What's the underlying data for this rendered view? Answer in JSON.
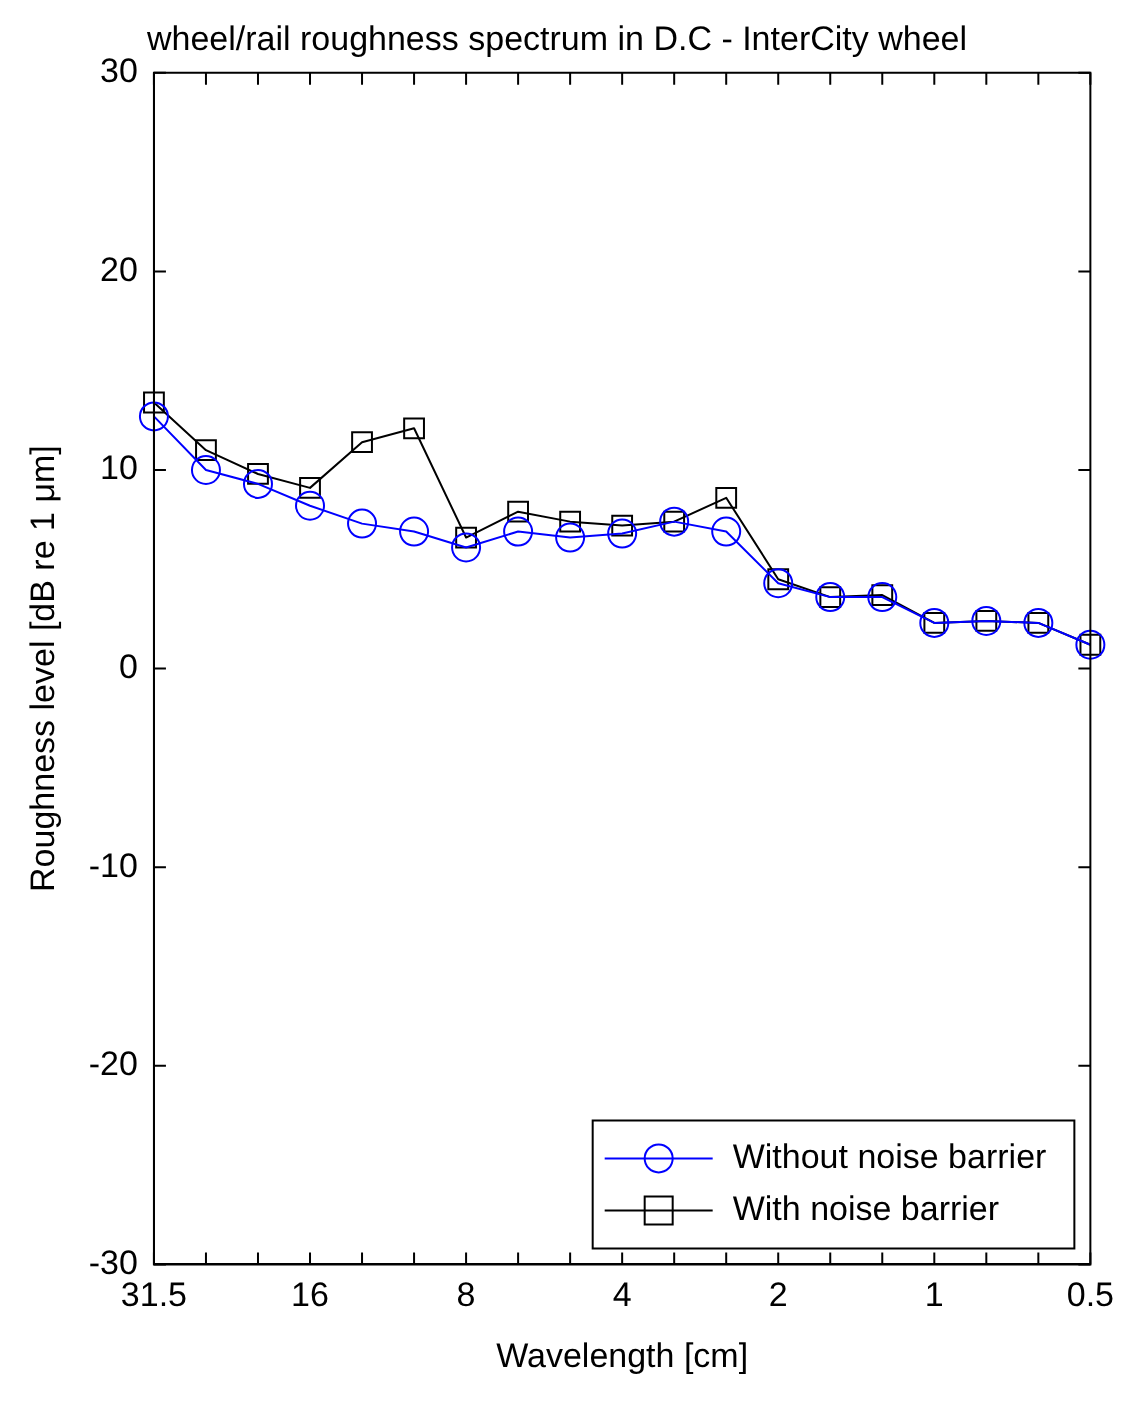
{
  "chart_data": {
    "type": "line",
    "title": "wheel/rail roughness spectrum in D.C - InterCity wheel",
    "xlabel": "Wavelength [cm]",
    "ylabel": "Roughness level [dB re 1 μm]",
    "categories": [
      "31.5",
      null,
      null,
      "16",
      null,
      null,
      "8",
      null,
      null,
      "4",
      null,
      null,
      "2",
      null,
      null,
      "1",
      null,
      null,
      "0.5"
    ],
    "series": [
      {
        "name": "Without noise barrier",
        "color": "#0000ff",
        "marker": "circle",
        "values": [
          12.7,
          10.0,
          9.3,
          8.2,
          7.3,
          6.9,
          6.1,
          6.9,
          6.6,
          6.8,
          7.4,
          6.9,
          4.3,
          3.6,
          3.6,
          2.3,
          2.4,
          2.3,
          1.2
        ]
      },
      {
        "name": "With noise barrier",
        "color": "#000000",
        "marker": "square",
        "values": [
          13.4,
          11.0,
          9.8,
          9.1,
          11.4,
          12.1,
          6.6,
          7.9,
          7.4,
          7.2,
          7.4,
          8.6,
          4.5,
          3.6,
          3.7,
          2.3,
          2.4,
          2.3,
          1.2
        ]
      }
    ],
    "ylim": [
      -30,
      30
    ],
    "yticks": [
      -30,
      -20,
      -10,
      0,
      10,
      20,
      30
    ],
    "grid": false,
    "legend": "bottom right",
    "line_style": "solid"
  }
}
